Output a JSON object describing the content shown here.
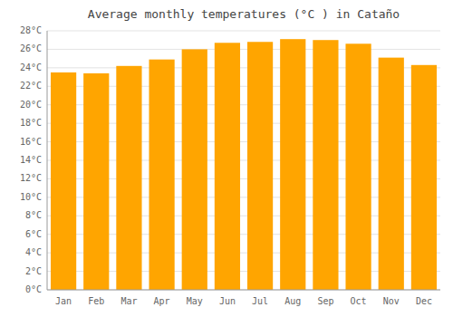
{
  "chart_data": {
    "type": "bar",
    "title": "Average monthly temperatures (°C ) in Cataño",
    "categories": [
      "Jan",
      "Feb",
      "Mar",
      "Apr",
      "May",
      "Jun",
      "Jul",
      "Aug",
      "Sep",
      "Oct",
      "Nov",
      "Dec"
    ],
    "values": [
      23.5,
      23.4,
      24.2,
      24.9,
      26.0,
      26.7,
      26.8,
      27.1,
      27.0,
      26.6,
      25.1,
      24.3
    ],
    "color": "#FFA500",
    "ylim": [
      0,
      28
    ],
    "yticks": [
      {
        "value": 0,
        "label": "0°C"
      },
      {
        "value": 2,
        "label": "2°C"
      },
      {
        "value": 4,
        "label": "4°C"
      },
      {
        "value": 6,
        "label": "6°C"
      },
      {
        "value": 8,
        "label": "8°C"
      },
      {
        "value": 10,
        "label": "10°C"
      },
      {
        "value": 12,
        "label": "12°C"
      },
      {
        "value": 14,
        "label": "14°C"
      },
      {
        "value": 16,
        "label": "16°C"
      },
      {
        "value": 18,
        "label": "18°C"
      },
      {
        "value": 20,
        "label": "20°C"
      },
      {
        "value": 22,
        "label": "22°C"
      },
      {
        "value": 24,
        "label": "24°C"
      },
      {
        "value": 26,
        "label": "26°C"
      },
      {
        "value": 28,
        "label": "28°C"
      }
    ],
    "grid": true
  }
}
